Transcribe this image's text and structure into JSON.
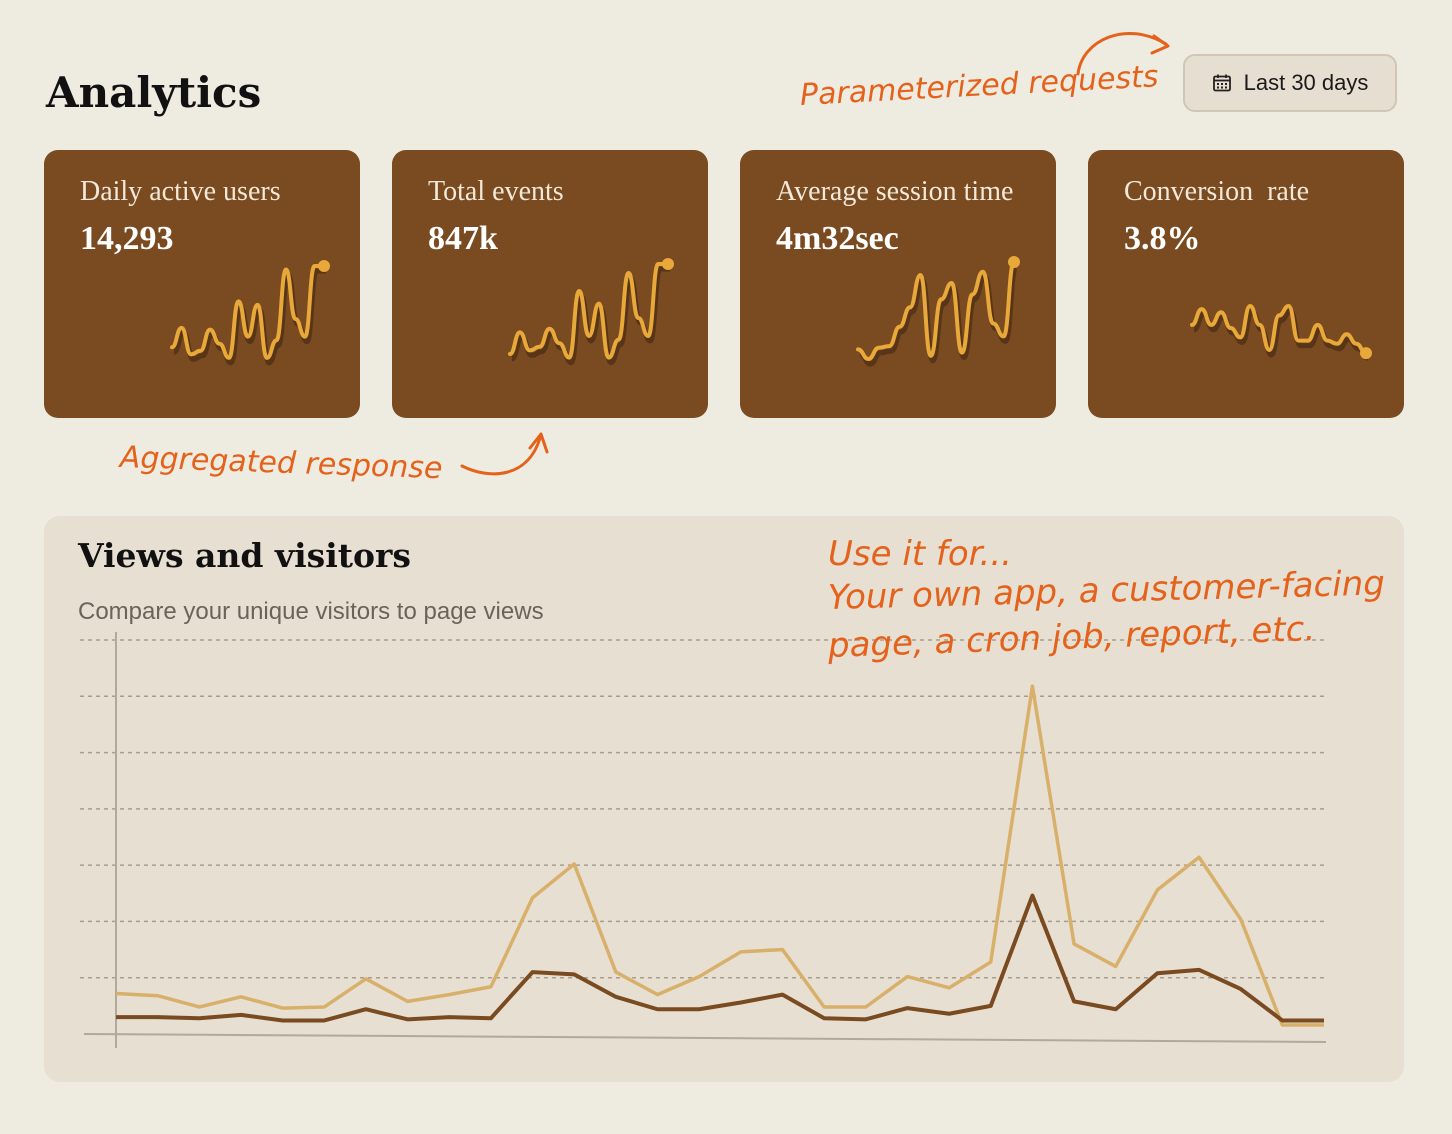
{
  "header": {
    "title": "Analytics"
  },
  "date_range": {
    "label": "Last 30 days",
    "icon": "calendar-icon"
  },
  "colors": {
    "card_bg": "#7A4A20",
    "sparkline": "#E8A93A",
    "views": "#D9B06A",
    "visitors": "#7A4A20",
    "annotation": "#E4621B"
  },
  "metrics": [
    {
      "label": "Daily active users",
      "value": "14,293"
    },
    {
      "label": "Total events",
      "value": "847k"
    },
    {
      "label": "Average session time",
      "value": "4m32sec"
    },
    {
      "label": "Conversion  rate",
      "value": "3.8%"
    }
  ],
  "annotations": {
    "parameterized": "Parameterized requests",
    "aggregated": "Aggregated response",
    "use_line1": "Use it for...",
    "use_line2": "Your own app, a customer-facing",
    "use_line3": "page, a cron job, report, etc."
  },
  "views_panel": {
    "title": "Views and visitors",
    "subtitle": "Compare your unique visitors to page views"
  },
  "chart_data": [
    {
      "type": "line",
      "series": [
        {
          "values": [
            14,
            25,
            10,
            12,
            24,
            16,
            8,
            40,
            20,
            38,
            8,
            18,
            58,
            30,
            20,
            60,
            60
          ]
        }
      ]
    },
    {
      "type": "line",
      "series": [
        {
          "values": [
            10,
            22,
            12,
            14,
            24,
            16,
            8,
            45,
            20,
            38,
            8,
            18,
            55,
            30,
            20,
            60,
            60
          ]
        }
      ]
    },
    {
      "type": "line",
      "series": [
        {
          "values": [
            14,
            8,
            15,
            16,
            28,
            40,
            60,
            10,
            45,
            55,
            12,
            48,
            62,
            30,
            22,
            68
          ]
        }
      ]
    },
    {
      "type": "line",
      "series": [
        {
          "values": [
            30,
            40,
            30,
            38,
            28,
            22,
            42,
            30,
            14,
            36,
            42,
            20,
            20,
            30,
            20,
            18,
            24,
            18,
            12
          ]
        }
      ]
    },
    {
      "type": "line",
      "x": [
        1,
        2,
        3,
        4,
        5,
        6,
        7,
        8,
        9,
        10,
        11,
        12,
        13,
        14,
        15,
        16,
        17,
        18,
        19,
        20,
        21,
        22,
        23,
        24,
        25,
        26,
        27,
        28,
        29,
        30
      ],
      "series": [
        {
          "values": [
            36,
            34,
            24,
            33,
            23,
            24,
            49,
            29,
            35,
            42,
            121,
            151,
            55,
            35,
            51,
            73,
            75,
            24,
            24,
            51,
            41,
            64,
            309,
            80,
            60,
            128,
            157,
            102,
            8,
            8
          ]
        },
        {
          "values": [
            15,
            15,
            14,
            17,
            12,
            12,
            22,
            13,
            15,
            14,
            55,
            53,
            33,
            22,
            22,
            28,
            35,
            14,
            13,
            23,
            18,
            25,
            123,
            29,
            22,
            54,
            57,
            40,
            12,
            12
          ]
        }
      ],
      "ylim": [
        0,
        350
      ],
      "grid": true
    }
  ]
}
